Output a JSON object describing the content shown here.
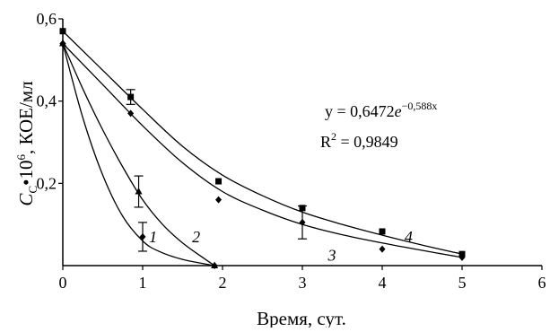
{
  "chart_data": {
    "type": "scatter",
    "xlabel": "Время, сут.",
    "ylabel_parts": {
      "c": "C",
      "c_sub": "C",
      "mult": "•10",
      "exp": "6",
      "unit": ", КОЕ/мл"
    },
    "xlim": [
      0,
      6
    ],
    "ylim": [
      0,
      0.6
    ],
    "x_ticks": [
      0,
      1,
      2,
      3,
      4,
      5,
      6
    ],
    "x_tick_labels": [
      "0",
      "1",
      "2",
      "3",
      "4",
      "5",
      "6"
    ],
    "y_ticks": [
      0.2,
      0.4,
      0.6
    ],
    "y_tick_labels": [
      "0,2",
      "0,4",
      "0,6"
    ],
    "grid": false,
    "series": [
      {
        "name": "1",
        "marker": "diamond",
        "x": [
          0,
          1,
          1.9
        ],
        "y": [
          0.54,
          0.07,
          0
        ],
        "error": [
          0,
          0.035,
          0
        ],
        "curve": [
          [
            0,
            0.54
          ],
          [
            0.25,
            0.36
          ],
          [
            0.5,
            0.22
          ],
          [
            0.75,
            0.12
          ],
          [
            1.0,
            0.06
          ],
          [
            1.2,
            0.035
          ],
          [
            1.5,
            0.015
          ],
          [
            1.9,
            0.0
          ]
        ]
      },
      {
        "name": "2",
        "marker": "triangle",
        "x": [
          0,
          0.95,
          1.9
        ],
        "y": [
          0.54,
          0.18,
          0
        ],
        "error": [
          0,
          0.038,
          0
        ],
        "curve": [
          [
            0,
            0.54
          ],
          [
            0.25,
            0.43
          ],
          [
            0.5,
            0.33
          ],
          [
            0.75,
            0.24
          ],
          [
            1.0,
            0.16
          ],
          [
            1.25,
            0.1
          ],
          [
            1.5,
            0.055
          ],
          [
            1.75,
            0.02
          ],
          [
            1.9,
            0.0
          ]
        ]
      },
      {
        "name": "3",
        "marker": "diamond",
        "x": [
          0,
          0.85,
          1.95,
          3.0,
          4.0,
          5.0
        ],
        "y": [
          0.54,
          0.37,
          0.16,
          0.105,
          0.04,
          0.02
        ],
        "error": [
          0,
          0,
          0,
          0.04,
          0,
          0
        ],
        "curve": [
          [
            0,
            0.54
          ],
          [
            0.5,
            0.44
          ],
          [
            1.0,
            0.34
          ],
          [
            1.5,
            0.25
          ],
          [
            2.0,
            0.18
          ],
          [
            2.5,
            0.135
          ],
          [
            3.0,
            0.1
          ],
          [
            3.5,
            0.075
          ],
          [
            4.0,
            0.055
          ],
          [
            4.5,
            0.037
          ],
          [
            5.0,
            0.02
          ]
        ]
      },
      {
        "name": "4",
        "marker": "square",
        "x": [
          0,
          0.85,
          1.95,
          3.0,
          4.0,
          5.0
        ],
        "y": [
          0.57,
          0.41,
          0.205,
          0.14,
          0.083,
          0.028
        ],
        "error": [
          0,
          0.018,
          0,
          0,
          0,
          0
        ],
        "curve": [
          [
            0,
            0.57
          ],
          [
            0.5,
            0.475
          ],
          [
            1.0,
            0.38
          ],
          [
            1.5,
            0.29
          ],
          [
            2.0,
            0.22
          ],
          [
            2.5,
            0.17
          ],
          [
            3.0,
            0.13
          ],
          [
            3.5,
            0.1
          ],
          [
            4.0,
            0.074
          ],
          [
            4.5,
            0.05
          ],
          [
            5.0,
            0.028
          ]
        ]
      }
    ],
    "curve_labels": [
      {
        "text": "1",
        "x": 1.08,
        "y": 0.07
      },
      {
        "text": "2",
        "x": 1.62,
        "y": 0.07
      },
      {
        "text": "3",
        "x": 3.32,
        "y": 0.025
      },
      {
        "text": "4",
        "x": 4.28,
        "y": 0.07
      }
    ],
    "annotations": {
      "equation_prefix": "y = 0,6472",
      "equation_e": "e",
      "equation_exp": "−0,588x",
      "r2_prefix": "R",
      "r2_sup": "2",
      "r2_value": " = 0,9849"
    }
  }
}
